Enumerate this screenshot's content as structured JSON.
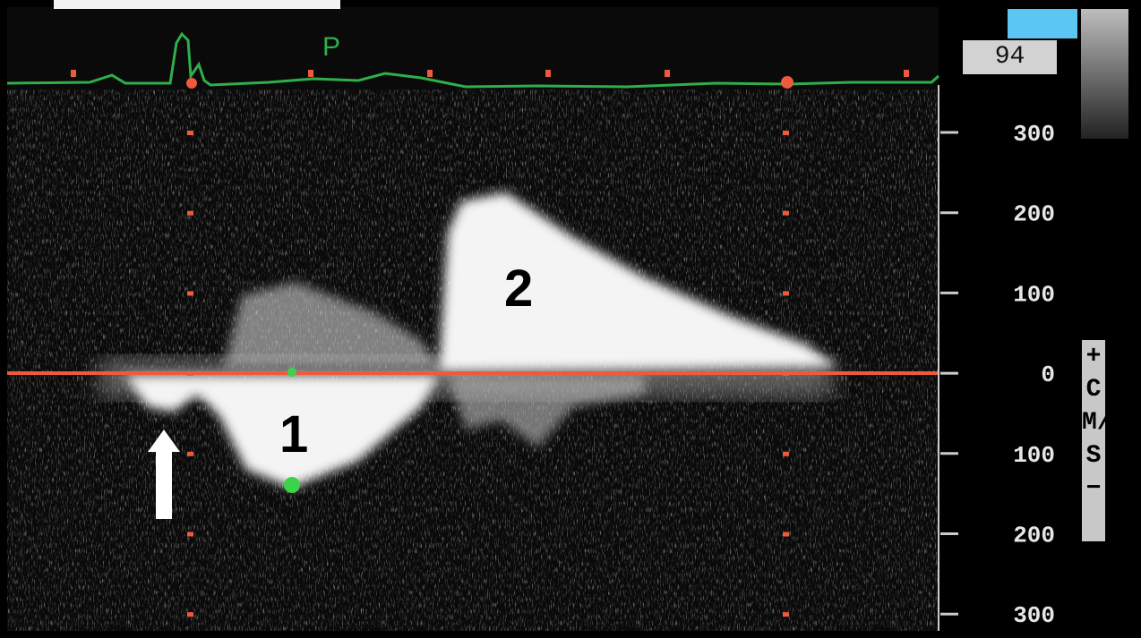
{
  "indicator": "94",
  "ecg_label": "P",
  "scale": {
    "ticks": [
      "300",
      "200",
      "100",
      "0",
      "100",
      "200",
      "300"
    ],
    "unit": "+CM/S−"
  },
  "annotations": {
    "wave_1": "1",
    "wave_2": "2"
  }
}
